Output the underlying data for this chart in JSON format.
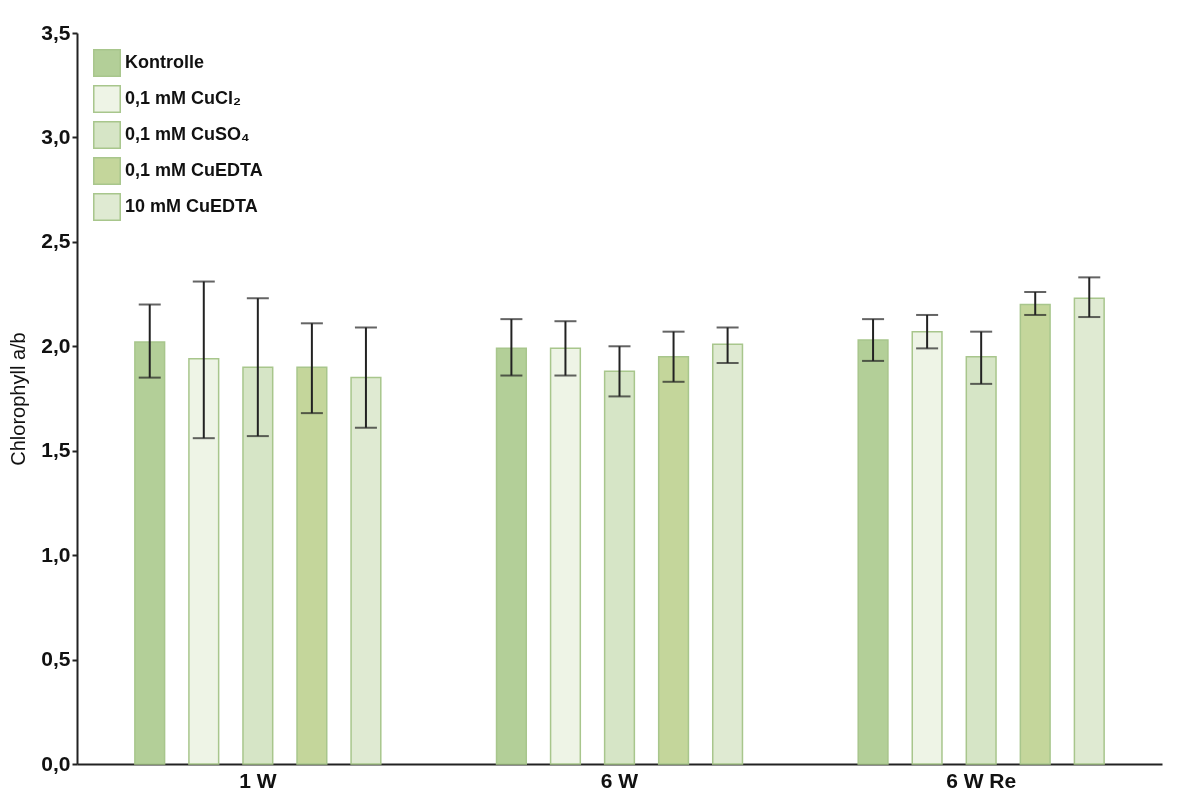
{
  "chart_data": {
    "type": "bar",
    "ylabel": "Chlorophyll a/b",
    "categories": [
      "1 W",
      "6 W",
      "6 W Re"
    ],
    "series": [
      {
        "name": "Kontrolle",
        "color": "#b3cf98",
        "values": [
          2.02,
          1.99,
          2.03
        ],
        "errors": [
          [
            1.85,
            2.2
          ],
          [
            1.86,
            2.13
          ],
          [
            1.93,
            2.13
          ]
        ]
      },
      {
        "name": "0,1 mM CuCl₂",
        "color": "#eef4e6",
        "values": [
          1.94,
          1.99,
          2.07
        ],
        "errors": [
          [
            1.56,
            2.31
          ],
          [
            1.86,
            2.12
          ],
          [
            1.99,
            2.15
          ]
        ]
      },
      {
        "name": "0,1 mM CuSO₄",
        "color": "#d6e5c6",
        "values": [
          1.9,
          1.88,
          1.95
        ],
        "errors": [
          [
            1.57,
            2.23
          ],
          [
            1.76,
            2.0
          ],
          [
            1.82,
            2.07
          ]
        ]
      },
      {
        "name": "0,1 mM CuEDTA",
        "color": "#c4d69b",
        "values": [
          1.9,
          1.95,
          2.2
        ],
        "errors": [
          [
            1.68,
            2.11
          ],
          [
            1.83,
            2.07
          ],
          [
            2.15,
            2.26
          ]
        ]
      },
      {
        "name": "10 mM CuEDTA",
        "color": "#dfead2",
        "values": [
          1.85,
          2.01,
          2.23
        ],
        "errors": [
          [
            1.61,
            2.09
          ],
          [
            1.92,
            2.09
          ],
          [
            2.14,
            2.33
          ]
        ]
      }
    ],
    "ylim": [
      0,
      3.5
    ],
    "yticks": [
      {
        "value": 0,
        "label": "0,0"
      },
      {
        "value": 0.5,
        "label": "0,5"
      },
      {
        "value": 1,
        "label": "1,0"
      },
      {
        "value": 1.5,
        "label": "1,5"
      },
      {
        "value": 2,
        "label": "2,0"
      },
      {
        "value": 2.5,
        "label": "2,5"
      },
      {
        "value": 3,
        "label": "3,0"
      },
      {
        "value": 3.5,
        "label": "3,5"
      }
    ],
    "grid": false,
    "legend": "top left"
  }
}
